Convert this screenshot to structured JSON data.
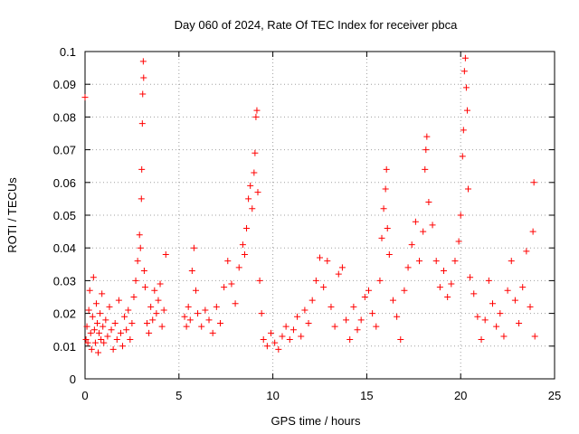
{
  "chart_data": {
    "type": "scatter",
    "title": "Day 060 of 2024, Rate Of TEC Index for receiver pbca",
    "xlabel": "GPS time / hours",
    "ylabel": "ROTI / TECUs",
    "xlim": [
      0,
      25
    ],
    "ylim": [
      0,
      0.1
    ],
    "x_ticks": [
      "0",
      "5",
      "10",
      "15",
      "20",
      "25"
    ],
    "y_ticks": [
      "0",
      "0.01",
      "0.02",
      "0.03",
      "0.04",
      "0.05",
      "0.06",
      "0.07",
      "0.08",
      "0.09",
      "0.1"
    ],
    "grid": true,
    "marker": "+",
    "color": "#ff0000",
    "series": [
      {
        "points": [
          [
            0.0,
            0.086
          ],
          [
            0.05,
            0.012
          ],
          [
            0.1,
            0.016
          ],
          [
            0.15,
            0.011
          ],
          [
            0.2,
            0.021
          ],
          [
            0.25,
            0.027
          ],
          [
            0.3,
            0.014
          ],
          [
            0.35,
            0.009
          ],
          [
            0.4,
            0.019
          ],
          [
            0.45,
            0.031
          ],
          [
            0.5,
            0.015
          ],
          [
            0.55,
            0.011
          ],
          [
            0.6,
            0.023
          ],
          [
            0.65,
            0.017
          ],
          [
            0.7,
            0.008
          ],
          [
            0.75,
            0.014
          ],
          [
            0.8,
            0.02
          ],
          [
            0.85,
            0.012
          ],
          [
            0.9,
            0.026
          ],
          [
            0.95,
            0.016
          ],
          [
            1.0,
            0.011
          ],
          [
            1.1,
            0.018
          ],
          [
            1.2,
            0.013
          ],
          [
            1.3,
            0.022
          ],
          [
            1.4,
            0.015
          ],
          [
            1.5,
            0.009
          ],
          [
            1.6,
            0.017
          ],
          [
            1.7,
            0.012
          ],
          [
            1.8,
            0.024
          ],
          [
            1.9,
            0.014
          ],
          [
            2.0,
            0.01
          ],
          [
            2.1,
            0.019
          ],
          [
            2.2,
            0.015
          ],
          [
            2.3,
            0.021
          ],
          [
            2.4,
            0.012
          ],
          [
            2.5,
            0.017
          ],
          [
            2.6,
            0.025
          ],
          [
            2.7,
            0.03
          ],
          [
            2.8,
            0.036
          ],
          [
            2.9,
            0.044
          ],
          [
            2.95,
            0.04
          ],
          [
            3.0,
            0.055
          ],
          [
            3.02,
            0.064
          ],
          [
            3.05,
            0.078
          ],
          [
            3.07,
            0.087
          ],
          [
            3.1,
            0.097
          ],
          [
            3.12,
            0.092
          ],
          [
            3.15,
            0.033
          ],
          [
            3.2,
            0.028
          ],
          [
            3.3,
            0.017
          ],
          [
            3.4,
            0.014
          ],
          [
            3.5,
            0.022
          ],
          [
            3.6,
            0.018
          ],
          [
            3.7,
            0.027
          ],
          [
            3.8,
            0.02
          ],
          [
            3.9,
            0.024
          ],
          [
            4.0,
            0.029
          ],
          [
            4.1,
            0.016
          ],
          [
            4.2,
            0.021
          ],
          [
            4.3,
            0.038
          ],
          [
            5.3,
            0.019
          ],
          [
            5.4,
            0.016
          ],
          [
            5.5,
            0.022
          ],
          [
            5.6,
            0.018
          ],
          [
            5.7,
            0.033
          ],
          [
            5.8,
            0.04
          ],
          [
            5.9,
            0.027
          ],
          [
            6.0,
            0.02
          ],
          [
            6.2,
            0.016
          ],
          [
            6.4,
            0.021
          ],
          [
            6.6,
            0.018
          ],
          [
            6.8,
            0.014
          ],
          [
            7.0,
            0.022
          ],
          [
            7.2,
            0.017
          ],
          [
            7.4,
            0.028
          ],
          [
            7.6,
            0.036
          ],
          [
            7.8,
            0.029
          ],
          [
            8.0,
            0.023
          ],
          [
            8.2,
            0.034
          ],
          [
            8.4,
            0.041
          ],
          [
            8.5,
            0.038
          ],
          [
            8.6,
            0.046
          ],
          [
            8.7,
            0.055
          ],
          [
            8.8,
            0.059
          ],
          [
            8.9,
            0.052
          ],
          [
            9.0,
            0.063
          ],
          [
            9.05,
            0.069
          ],
          [
            9.1,
            0.08
          ],
          [
            9.15,
            0.082
          ],
          [
            9.2,
            0.057
          ],
          [
            9.3,
            0.03
          ],
          [
            9.4,
            0.02
          ],
          [
            9.5,
            0.012
          ],
          [
            9.7,
            0.01
          ],
          [
            9.9,
            0.014
          ],
          [
            10.1,
            0.011
          ],
          [
            10.3,
            0.009
          ],
          [
            10.5,
            0.013
          ],
          [
            10.7,
            0.016
          ],
          [
            10.9,
            0.012
          ],
          [
            11.1,
            0.015
          ],
          [
            11.3,
            0.019
          ],
          [
            11.5,
            0.013
          ],
          [
            11.7,
            0.021
          ],
          [
            11.9,
            0.017
          ],
          [
            12.1,
            0.024
          ],
          [
            12.3,
            0.03
          ],
          [
            12.5,
            0.037
          ],
          [
            12.7,
            0.028
          ],
          [
            12.9,
            0.036
          ],
          [
            13.1,
            0.022
          ],
          [
            13.3,
            0.016
          ],
          [
            13.5,
            0.032
          ],
          [
            13.7,
            0.034
          ],
          [
            13.9,
            0.018
          ],
          [
            14.1,
            0.012
          ],
          [
            14.3,
            0.022
          ],
          [
            14.5,
            0.015
          ],
          [
            14.7,
            0.018
          ],
          [
            14.9,
            0.025
          ],
          [
            15.1,
            0.027
          ],
          [
            15.3,
            0.02
          ],
          [
            15.5,
            0.016
          ],
          [
            15.7,
            0.03
          ],
          [
            15.8,
            0.043
          ],
          [
            15.9,
            0.052
          ],
          [
            16.0,
            0.058
          ],
          [
            16.05,
            0.064
          ],
          [
            16.1,
            0.046
          ],
          [
            16.2,
            0.038
          ],
          [
            16.4,
            0.024
          ],
          [
            16.6,
            0.019
          ],
          [
            16.8,
            0.012
          ],
          [
            17.0,
            0.027
          ],
          [
            17.2,
            0.034
          ],
          [
            17.4,
            0.041
          ],
          [
            17.6,
            0.048
          ],
          [
            17.8,
            0.036
          ],
          [
            18.0,
            0.045
          ],
          [
            18.1,
            0.064
          ],
          [
            18.15,
            0.07
          ],
          [
            18.2,
            0.074
          ],
          [
            18.3,
            0.054
          ],
          [
            18.5,
            0.047
          ],
          [
            18.7,
            0.036
          ],
          [
            18.9,
            0.028
          ],
          [
            19.1,
            0.033
          ],
          [
            19.3,
            0.025
          ],
          [
            19.5,
            0.029
          ],
          [
            19.7,
            0.036
          ],
          [
            19.9,
            0.042
          ],
          [
            20.0,
            0.05
          ],
          [
            20.1,
            0.068
          ],
          [
            20.15,
            0.076
          ],
          [
            20.2,
            0.094
          ],
          [
            20.25,
            0.098
          ],
          [
            20.3,
            0.089
          ],
          [
            20.35,
            0.082
          ],
          [
            20.4,
            0.058
          ],
          [
            20.5,
            0.031
          ],
          [
            20.7,
            0.026
          ],
          [
            20.9,
            0.019
          ],
          [
            21.1,
            0.012
          ],
          [
            21.3,
            0.018
          ],
          [
            21.5,
            0.03
          ],
          [
            21.7,
            0.023
          ],
          [
            21.9,
            0.016
          ],
          [
            22.1,
            0.02
          ],
          [
            22.3,
            0.013
          ],
          [
            22.5,
            0.027
          ],
          [
            22.7,
            0.036
          ],
          [
            22.9,
            0.024
          ],
          [
            23.1,
            0.017
          ],
          [
            23.3,
            0.028
          ],
          [
            23.5,
            0.039
          ],
          [
            23.7,
            0.022
          ],
          [
            23.85,
            0.045
          ],
          [
            23.9,
            0.06
          ],
          [
            23.95,
            0.013
          ]
        ]
      }
    ]
  }
}
